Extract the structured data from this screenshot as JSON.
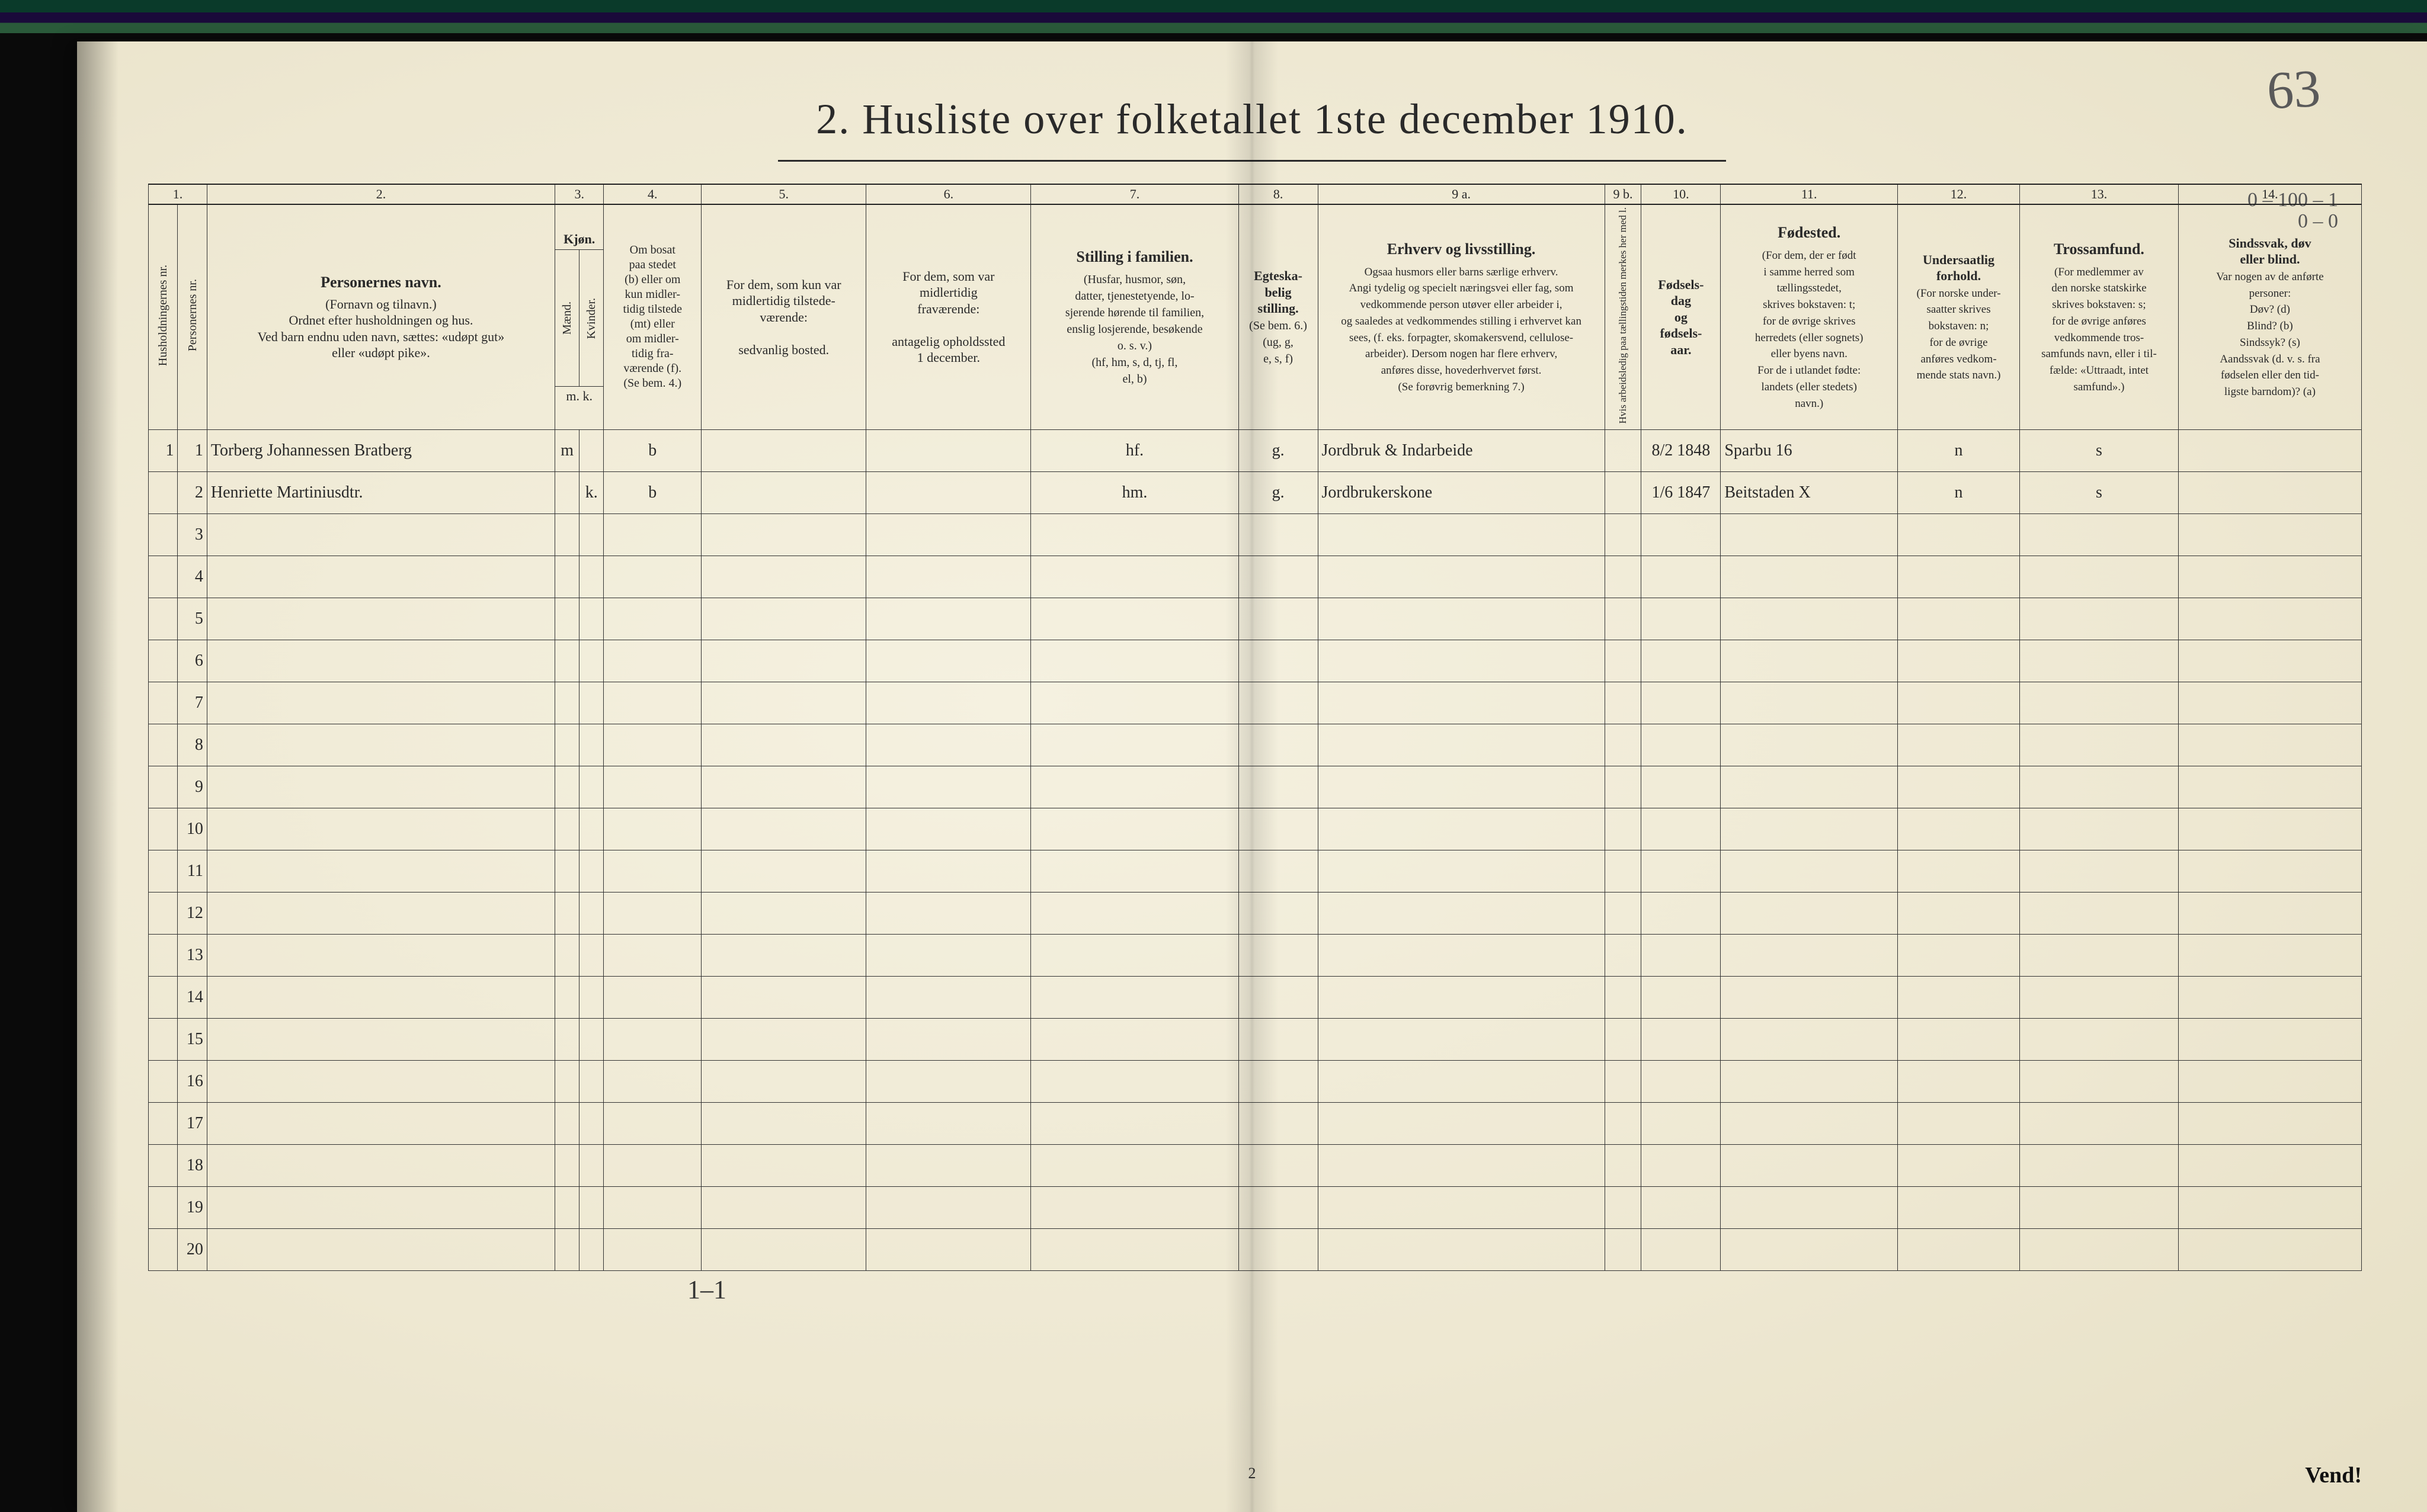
{
  "page": {
    "title": "2.   Husliste over folketallet 1ste december 1910.",
    "handwritten_page_number": "63",
    "footer_page_number": "2",
    "vend": "Vend!",
    "top_right_scribble": "0 – 100 – 1\n0 – 0",
    "below_table_left": "1–1",
    "colors": {
      "paper": "#f5f1e0",
      "paper_edge": "#e6dfc4",
      "ink": "#2a2a2a",
      "rule": "#333333",
      "handwriting": "#222222"
    }
  },
  "columns": {
    "numbers": [
      "1.",
      "2.",
      "3.",
      "4.",
      "5.",
      "6.",
      "7.",
      "8.",
      "9 a.",
      "9 b.",
      "10.",
      "11.",
      "12.",
      "13.",
      "14."
    ],
    "c1a": "Husholdningernes nr.",
    "c1b": "Personernes nr.",
    "c2_title": "Personernes navn.",
    "c2_sub": "(Fornavn og tilnavn.)\nOrdnet efter husholdningen og hus.\nVed barn endnu uden navn, sættes: «udøpt gut»\neller «udøpt pike».",
    "c3_title": "Kjøn.",
    "c3_m": "Mænd.",
    "c3_k": "Kvinder.",
    "c3_foot": "m.    k.",
    "c4": "Om bosat\npaa stedet\n(b) eller om\nkun midler-\ntidig tilstede\n(mt) eller\nom midler-\ntidig fra-\nværende (f).\n(Se bem. 4.)",
    "c5": "For dem, som kun var\nmidlertidig tilstede-\nværende:\n\nsedvanlig bosted.",
    "c6": "For dem, som var\nmidlertidig\nfraværende:\n\nantagelig opholdssted\n1 december.",
    "c7_title": "Stilling i familien.",
    "c7_sub": "(Husfar, husmor, søn,\ndatter, tjenestetyende, lo-\nsjerende hørende til familien,\nenslig losjerende, besøkende\no. s. v.)\n(hf, hm, s, d, tj, fl,\nel, b)",
    "c8_title": "Egteska-\nbelig\nstilling.",
    "c8_sub": "(Se bem. 6.)\n(ug, g,\ne, s, f)",
    "c9a_title": "Erhverv og livsstilling.",
    "c9a_sub": "Ogsaa husmors eller barns særlige erhverv.\nAngi tydelig og specielt næringsvei eller fag, som\nvedkommende person utøver eller arbeider i,\nog saaledes at vedkommendes stilling i erhvervet kan\nsees, (f. eks. forpagter, skomakersvend, cellulose-\narbeider). Dersom nogen har flere erhverv,\nanføres disse, hovederhvervet først.\n(Se forøvrig bemerkning 7.)",
    "c9b": "Hvis arbeidsledig\npaa tællingstiden merkes\nher med l.",
    "c10": "Fødsels-\ndag\nog\nfødsels-\naar.",
    "c11_title": "Fødested.",
    "c11_sub": "(For dem, der er født\ni samme herred som\ntællingsstedet,\nskrives bokstaven: t;\nfor de øvrige skrives\nherredets (eller sognets)\neller byens navn.\nFor de i utlandet fødte:\nlandets (eller stedets)\nnavn.)",
    "c12_title": "Undersaatlig\nforhold.",
    "c12_sub": "(For norske under-\nsaatter skrives\nbokstaven: n;\nfor de øvrige\nanføres vedkom-\nmende stats navn.)",
    "c13_title": "Trossamfund.",
    "c13_sub": "(For medlemmer av\nden norske statskirke\nskrives bokstaven: s;\nfor de øvrige anføres\nvedkommende tros-\nsamfunds navn, eller i til-\nfælde: «Uttraadt, intet\nsamfund».)",
    "c14_title": "Sindssvak, døv\neller blind.",
    "c14_sub": "Var nogen av de anførte\npersoner:\nDøv?        (d)\nBlind?      (b)\nSindssyk?  (s)\nAandssvak (d. v. s. fra\nfødselen eller den tid-\nligste barndom)? (a)"
  },
  "rows": [
    {
      "hh": "1",
      "pnr": "1",
      "name": "Torberg Johannessen Bratberg",
      "sex_m": "m",
      "sex_k": "",
      "resident": "b",
      "tmp_present": "",
      "tmp_absent": "",
      "family_pos": "hf.",
      "marital": "g.",
      "occupation": "Jordbruk & Indarbeide",
      "unemployed": "",
      "dob": "8/2 1848",
      "birthplace": "Sparbu 16",
      "nationality": "n",
      "faith": "s",
      "disability": ""
    },
    {
      "hh": "",
      "pnr": "2",
      "name": "Henriette Martiniusdtr.",
      "sex_m": "",
      "sex_k": "k.",
      "resident": "b",
      "tmp_present": "",
      "tmp_absent": "",
      "family_pos": "hm.",
      "marital": "g.",
      "occupation": "Jordbrukerskone",
      "unemployed": "",
      "dob": "1/6 1847",
      "birthplace": "Beitstaden X",
      "nationality": "n",
      "faith": "s",
      "disability": ""
    }
  ],
  "blank_rows": {
    "start": 3,
    "end": 20
  }
}
